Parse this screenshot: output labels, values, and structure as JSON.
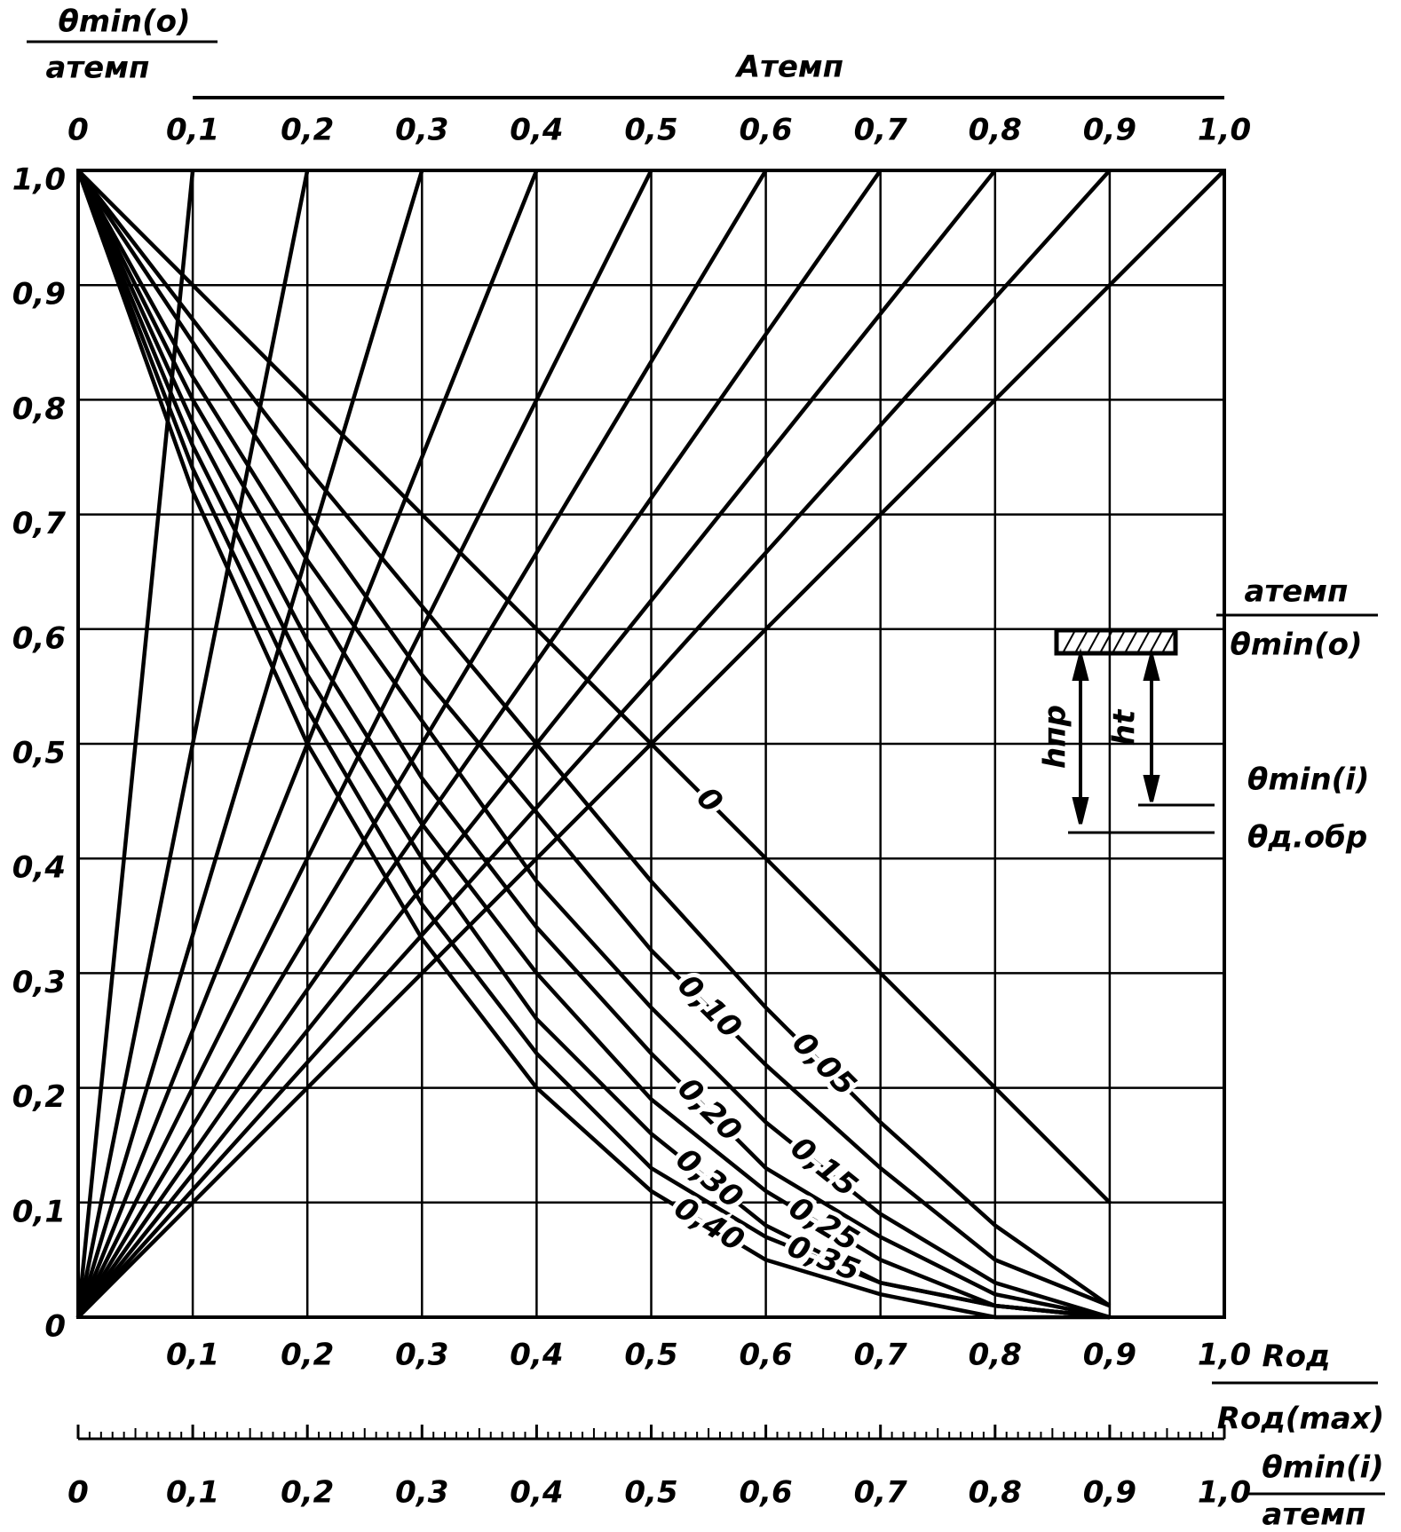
{
  "chart_data": {
    "type": "nomogram",
    "y_label_num": "θmin(o)",
    "y_label_den": "aтемп",
    "x_label_num": "Rод",
    "x_label_den": "Rод(max)",
    "top_label": "Aтемп",
    "xlim": [
      0,
      1
    ],
    "ylim": [
      0,
      1
    ],
    "grid": true,
    "xticks": [
      {
        "value": 0.1,
        "label": "0,1"
      },
      {
        "value": 0.2,
        "label": "0,2"
      },
      {
        "value": 0.3,
        "label": "0,3"
      },
      {
        "value": 0.4,
        "label": "0,4"
      },
      {
        "value": 0.5,
        "label": "0,5"
      },
      {
        "value": 0.6,
        "label": "0,6"
      },
      {
        "value": 0.7,
        "label": "0,7"
      },
      {
        "value": 0.8,
        "label": "0,8"
      },
      {
        "value": 0.9,
        "label": "0,9"
      },
      {
        "value": 1,
        "label": "1,0"
      }
    ],
    "yticks": [
      0,
      {
        "value": 0.1,
        "label": "0,1"
      },
      {
        "value": 0.2,
        "label": "0,2"
      },
      {
        "value": 0.3,
        "label": "0,3"
      },
      {
        "value": 0.4,
        "label": "0,4"
      },
      {
        "value": 0.5,
        "label": "0,5"
      },
      {
        "value": 0.6,
        "label": "0,6"
      },
      {
        "value": 0.7,
        "label": "0,7"
      },
      {
        "value": 0.8,
        "label": "0,8"
      },
      {
        "value": 0.9,
        "label": "0,9"
      },
      {
        "value": 1,
        "label": "1,0"
      }
    ],
    "x2ticks": [
      0,
      {
        "value": 0.1,
        "label": "0,1"
      },
      {
        "value": 0.2,
        "label": "0,2"
      },
      {
        "value": 0.3,
        "label": "0,3"
      },
      {
        "value": 0.4,
        "label": "0,4"
      },
      {
        "value": 0.5,
        "label": "0,5"
      },
      {
        "value": 0.6,
        "label": "0,6"
      },
      {
        "value": 0.7,
        "label": "0,7"
      },
      {
        "value": 0.8,
        "label": "0,8"
      },
      {
        "value": 0.9,
        "label": "0,9"
      },
      {
        "value": 1,
        "label": "1,0"
      }
    ],
    "x": [
      0,
      0.1,
      0.2,
      0.3,
      0.4,
      0.5,
      0.6,
      0.7,
      0.8,
      0.9
    ],
    "series": [
      {
        "name": "0",
        "color": "#000000",
        "values": [
          1,
          0.9,
          0.8,
          0.7,
          0.6,
          0.5,
          0.4,
          0.3,
          0.2,
          0.1
        ]
      },
      {
        "name": "0,05",
        "color": "#000000",
        "values": [
          1,
          0.87,
          0.74,
          0.62,
          0.5,
          0.38,
          0.27,
          0.17,
          0.08,
          0.01
        ]
      },
      {
        "name": "0,10",
        "color": "#000000",
        "values": [
          1,
          0.85,
          0.7,
          0.56,
          0.44,
          0.32,
          0.22,
          0.13,
          0.05,
          0.01
        ]
      },
      {
        "name": "0,15",
        "color": "#000000",
        "values": [
          1,
          0.82,
          0.66,
          0.52,
          0.38,
          0.27,
          0.17,
          0.09,
          0.03,
          0
        ]
      },
      {
        "name": "0,20",
        "color": "#000000",
        "values": [
          1,
          0.8,
          0.63,
          0.47,
          0.34,
          0.23,
          0.13,
          0.07,
          0.02,
          0
        ]
      },
      {
        "name": "0,25",
        "color": "#000000",
        "values": [
          1,
          0.78,
          0.59,
          0.43,
          0.3,
          0.19,
          0.11,
          0.05,
          0.01,
          0
        ]
      },
      {
        "name": "0,30",
        "color": "#000000",
        "values": [
          1,
          0.76,
          0.56,
          0.4,
          0.26,
          0.16,
          0.08,
          0.03,
          0.01,
          0
        ]
      },
      {
        "name": "0,35",
        "color": "#000000",
        "values": [
          1,
          0.74,
          0.53,
          0.36,
          0.23,
          0.13,
          0.07,
          0.03,
          0.01,
          0
        ]
      },
      {
        "name": "0,40",
        "color": "#000000",
        "values": [
          1,
          0.72,
          0.5,
          0.33,
          0.2,
          0.11,
          0.05,
          0.02,
          0,
          0
        ]
      }
    ],
    "bottom_scale": {
      "label_num": "θmin(i)",
      "label_den": "aтемп",
      "xticks": [
        0,
        {
          "value": 0.1,
          "label": "0,1"
        },
        {
          "value": 0.2,
          "label": "0,2"
        },
        {
          "value": 0.3,
          "label": "0,3"
        },
        {
          "value": 0.4,
          "label": "0,4"
        },
        {
          "value": 0.5,
          "label": "0,5"
        },
        {
          "value": 0.6,
          "label": "0,6"
        },
        {
          "value": 0.7,
          "label": "0,7"
        },
        {
          "value": 0.8,
          "label": "0,8"
        },
        {
          "value": 0.9,
          "label": "0,9"
        },
        {
          "value": 1,
          "label": "1,0"
        }
      ]
    },
    "inset": {
      "label_num": "aтемп",
      "label_den": "θmin(o)",
      "h_left": "hпр",
      "h_right": "ht",
      "level_upper": "θmin(i)",
      "level_lower": "θд.обр"
    }
  }
}
